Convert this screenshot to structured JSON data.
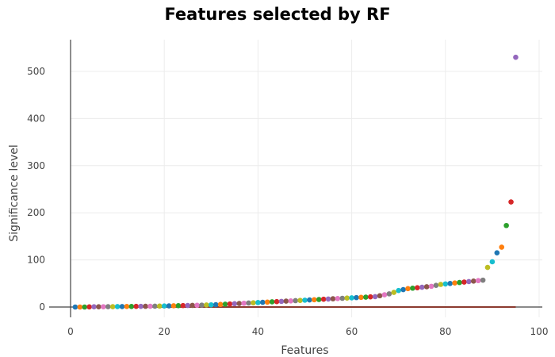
{
  "chart_data": {
    "type": "scatter",
    "title": "Features selected by RF",
    "xlabel": "Features",
    "ylabel": "Significance level",
    "xlim": [
      0,
      100
    ],
    "ylim": [
      0,
      565
    ],
    "xticks": [
      0,
      20,
      40,
      60,
      80,
      100
    ],
    "yticks": [
      0,
      100,
      200,
      300,
      400,
      500
    ],
    "grid": true,
    "legend": "none",
    "x": [
      1,
      2,
      3,
      4,
      5,
      6,
      7,
      8,
      9,
      10,
      11,
      12,
      13,
      14,
      15,
      16,
      17,
      18,
      19,
      20,
      21,
      22,
      23,
      24,
      25,
      26,
      27,
      28,
      29,
      30,
      31,
      32,
      33,
      34,
      35,
      36,
      37,
      38,
      39,
      40,
      41,
      42,
      43,
      44,
      45,
      46,
      47,
      48,
      49,
      50,
      51,
      52,
      53,
      54,
      55,
      56,
      57,
      58,
      59,
      60,
      61,
      62,
      63,
      64,
      65,
      66,
      67,
      68,
      69,
      70,
      71,
      72,
      73,
      74,
      75,
      76,
      77,
      78,
      79,
      80,
      81,
      82,
      83,
      84,
      85,
      86,
      87,
      88,
      89,
      90,
      91,
      92,
      93,
      94,
      95
    ],
    "y": [
      0,
      0,
      0,
      0.3,
      0.5,
      0.5,
      0.6,
      0.7,
      0.8,
      0.9,
      1.0,
      1.1,
      1.2,
      1.3,
      1.4,
      1.5,
      1.6,
      1.8,
      2.0,
      2.2,
      2.4,
      2.6,
      2.8,
      3.0,
      3.2,
      3.4,
      3.7,
      4.0,
      4.3,
      4.6,
      5.0,
      5.5,
      6,
      6.5,
      7,
      7.5,
      8,
      8.5,
      9,
      9.5,
      10,
      10.5,
      11,
      11.5,
      12,
      12.5,
      13,
      13.5,
      14,
      14.5,
      15,
      15.5,
      16,
      16.5,
      17,
      17.5,
      18,
      18.5,
      19,
      19.5,
      20,
      20.5,
      21,
      21.5,
      22,
      24,
      26,
      28,
      31,
      35,
      37,
      39,
      40,
      41,
      42,
      43,
      44,
      46,
      48,
      49,
      50,
      51,
      52,
      53,
      54,
      55,
      56,
      57,
      84,
      96,
      115,
      127,
      173,
      223,
      530
    ],
    "marker_colors": [
      "#1f77b4",
      "#ff7f0e",
      "#2ca02c",
      "#d62728",
      "#9467bd",
      "#8c564b",
      "#e377c2",
      "#7f7f7f",
      "#bcbd22",
      "#17becf"
    ],
    "baseline_color": "#8b3a2f"
  }
}
